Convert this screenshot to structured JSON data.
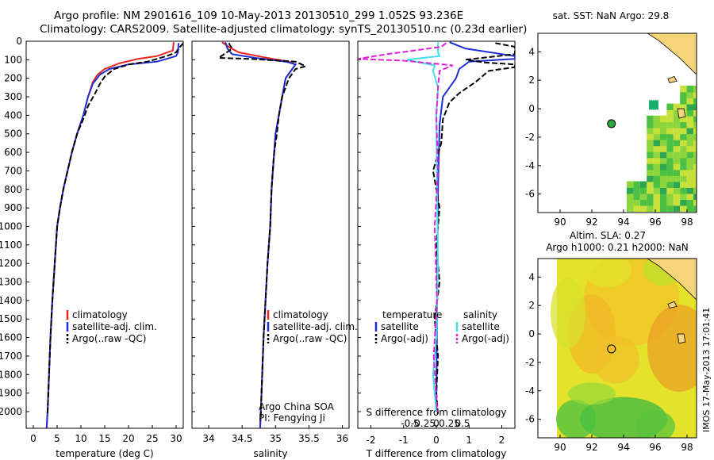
{
  "title_line1": "Argo profile: NM 2901616_109 10-May-2013 20130510_299 1.052S 93.236E",
  "title_line2": "Climatology: CARS2009. Satellite-adjusted climatology: synTS_20130510.nc (0.23d earlier)",
  "sidebar_text": "IMOS 17-May-2013 17:01:41",
  "colors": {
    "clim": "#e8261f",
    "sat": "#1f2ed6",
    "argo": "#000000",
    "sat_s": "#3fe0e8",
    "argo_s": "#e020d8"
  },
  "chart_data": [
    {
      "type": "line",
      "id": "temperature",
      "xlabel": "temperature (deg C)",
      "ylabel": "",
      "xlim": [
        -1.5,
        31.5
      ],
      "ylim": [
        2090,
        0
      ],
      "xticks": [
        0,
        5,
        10,
        15,
        20,
        25,
        30
      ],
      "yticks": [
        0,
        100,
        200,
        300,
        400,
        500,
        600,
        700,
        800,
        900,
        1000,
        1100,
        1200,
        1300,
        1400,
        1500,
        1600,
        1700,
        1800,
        1900,
        2000
      ],
      "legend": [
        "climatology",
        "satellite-adj. clim.",
        "Argo(..raw -QC)"
      ],
      "series": [
        {
          "name": "climatology",
          "points": [
            [
              29.5,
              5
            ],
            [
              29.3,
              50
            ],
            [
              26,
              80
            ],
            [
              22,
              95
            ],
            [
              18,
              120
            ],
            [
              15,
              150
            ],
            [
              13.5,
              180
            ],
            [
              12.5,
              220
            ],
            [
              11.5,
              300
            ],
            [
              10.5,
              400
            ],
            [
              9.2,
              500
            ],
            [
              8.1,
              600
            ],
            [
              7.2,
              700
            ],
            [
              6.3,
              800
            ],
            [
              5.6,
              900
            ],
            [
              5,
              1000
            ],
            [
              4.5,
              1200
            ],
            [
              4,
              1400
            ],
            [
              3.6,
              1600
            ],
            [
              3.3,
              1800
            ],
            [
              3,
              2000
            ],
            [
              2.8,
              2090
            ]
          ]
        },
        {
          "name": "satellite-adj. clim.",
          "points": [
            [
              30.5,
              10
            ],
            [
              30.4,
              60
            ],
            [
              30,
              80
            ],
            [
              26,
              110
            ],
            [
              20,
              125
            ],
            [
              16,
              150
            ],
            [
              14,
              180
            ],
            [
              12.5,
              230
            ],
            [
              11.5,
              300
            ],
            [
              10.5,
              400
            ],
            [
              9.2,
              500
            ],
            [
              8.1,
              600
            ],
            [
              7.2,
              700
            ],
            [
              6.3,
              800
            ],
            [
              5.6,
              900
            ],
            [
              5,
              1000
            ],
            [
              4.5,
              1200
            ],
            [
              4,
              1400
            ],
            [
              3.6,
              1600
            ],
            [
              3.3,
              1800
            ],
            [
              3,
              2000
            ],
            [
              2.8,
              2090
            ]
          ]
        },
        {
          "name": "Argo(..raw -QC)",
          "points": [
            [
              31.5,
              10
            ],
            [
              30.5,
              40
            ],
            [
              30,
              60
            ],
            [
              28,
              80
            ],
            [
              24,
              110
            ],
            [
              20,
              125
            ],
            [
              17,
              150
            ],
            [
              15,
              190
            ],
            [
              14,
              230
            ],
            [
              13,
              280
            ],
            [
              11.5,
              350
            ],
            [
              10.5,
              420
            ],
            [
              9.2,
              500
            ],
            [
              8.1,
              600
            ],
            [
              7.2,
              700
            ],
            [
              6.3,
              800
            ],
            [
              5.6,
              900
            ],
            [
              5,
              1000
            ],
            [
              4.5,
              1200
            ],
            [
              4,
              1400
            ],
            [
              3.6,
              1600
            ],
            [
              3.3,
              1800
            ],
            [
              3,
              2000
            ],
            [
              2.9,
              2020
            ]
          ]
        }
      ]
    },
    {
      "type": "line",
      "id": "salinity",
      "xlabel": "salinity",
      "xlim": [
        33.75,
        36.1
      ],
      "ylim": [
        2090,
        0
      ],
      "xticks": [
        34,
        34.5,
        35,
        35.5,
        36
      ],
      "legend": [
        "climatology",
        "satellite-adj. clim.",
        "Argo(..raw -QC)"
      ],
      "annotation": [
        "Argo China SOA",
        "PI: Fengying Ji"
      ],
      "series": [
        {
          "name": "climatology",
          "points": [
            [
              34.2,
              5
            ],
            [
              34.3,
              30
            ],
            [
              34.45,
              60
            ],
            [
              34.8,
              85
            ],
            [
              35.2,
              110
            ],
            [
              35.3,
              125
            ],
            [
              35.25,
              150
            ],
            [
              35.15,
              200
            ],
            [
              35.1,
              300
            ],
            [
              35.05,
              400
            ],
            [
              35.0,
              500
            ],
            [
              34.98,
              600
            ],
            [
              34.96,
              700
            ],
            [
              34.94,
              800
            ],
            [
              34.92,
              1000
            ],
            [
              34.88,
              1200
            ],
            [
              34.85,
              1400
            ],
            [
              34.82,
              1600
            ],
            [
              34.8,
              1800
            ],
            [
              34.78,
              2000
            ],
            [
              34.77,
              2090
            ]
          ]
        },
        {
          "name": "satellite-adj. clim.",
          "points": [
            [
              34.25,
              5
            ],
            [
              34.28,
              40
            ],
            [
              34.35,
              70
            ],
            [
              34.7,
              90
            ],
            [
              35.15,
              110
            ],
            [
              35.3,
              125
            ],
            [
              35.25,
              150
            ],
            [
              35.15,
              200
            ],
            [
              35.1,
              300
            ],
            [
              35.05,
              400
            ],
            [
              35.0,
              500
            ],
            [
              34.98,
              600
            ],
            [
              34.96,
              700
            ],
            [
              34.94,
              800
            ],
            [
              34.92,
              1000
            ],
            [
              34.88,
              1200
            ],
            [
              34.85,
              1400
            ],
            [
              34.82,
              1600
            ],
            [
              34.8,
              1800
            ],
            [
              34.78,
              2000
            ],
            [
              34.77,
              2090
            ]
          ]
        },
        {
          "name": "Argo(..raw -QC)",
          "points": [
            [
              34.3,
              10
            ],
            [
              34.35,
              40
            ],
            [
              34.15,
              90
            ],
            [
              34.6,
              95
            ],
            [
              35.3,
              110
            ],
            [
              35.45,
              135
            ],
            [
              35.3,
              150
            ],
            [
              35.2,
              200
            ],
            [
              35.1,
              300
            ],
            [
              35.05,
              400
            ],
            [
              35.02,
              500
            ],
            [
              34.98,
              600
            ],
            [
              34.96,
              700
            ],
            [
              34.94,
              800
            ],
            [
              34.92,
              1000
            ],
            [
              34.88,
              1200
            ],
            [
              34.85,
              1400
            ],
            [
              34.82,
              1600
            ],
            [
              34.8,
              1800
            ],
            [
              34.78,
              2000
            ],
            [
              34.78,
              2030
            ]
          ]
        }
      ]
    },
    {
      "type": "line",
      "id": "difference",
      "xlabel": "T difference from climatology",
      "xlabel_top": "S difference from climatology",
      "xlim": [
        -2.4,
        2.4
      ],
      "ylim": [
        2090,
        0
      ],
      "xticks": [
        -2,
        -1,
        0,
        1,
        2
      ],
      "s_ticks": [
        -0.5,
        -0.25,
        0,
        0.25,
        0.5
      ],
      "legend_left_title": "temperature",
      "legend_right_title": "salinity",
      "legend_left": [
        "satellite",
        "Argo(-adj)"
      ],
      "legend_right": [
        "satellite",
        "Argo(-adj)"
      ],
      "series": [
        {
          "name": "T satellite",
          "points": [
            [
              0.4,
              5
            ],
            [
              0.9,
              40
            ],
            [
              2.4,
              80
            ],
            [
              2.4,
              95
            ],
            [
              1,
              110
            ],
            [
              0.7,
              150
            ],
            [
              0.6,
              200
            ],
            [
              0.4,
              250
            ],
            [
              0.2,
              300
            ],
            [
              0.1,
              450
            ],
            [
              0.05,
              800
            ],
            [
              0.02,
              1500
            ],
            [
              0,
              2000
            ]
          ]
        },
        {
          "name": "T Argo(-adj)",
          "points": [
            [
              1.8,
              10
            ],
            [
              2.4,
              30
            ],
            [
              2.4,
              70
            ],
            [
              0.9,
              100
            ],
            [
              1.5,
              115
            ],
            [
              2.4,
              125
            ],
            [
              2.4,
              140
            ],
            [
              1.6,
              160
            ],
            [
              1.2,
              220
            ],
            [
              0.7,
              280
            ],
            [
              0.4,
              330
            ],
            [
              0.2,
              420
            ],
            [
              0.15,
              550
            ],
            [
              -0.1,
              700
            ],
            [
              0.1,
              900
            ],
            [
              0,
              1100
            ],
            [
              0.1,
              1300
            ],
            [
              -0.05,
              1500
            ],
            [
              0.05,
              1700
            ],
            [
              0,
              1900
            ],
            [
              0.05,
              2020
            ]
          ]
        },
        {
          "name": "S satellite",
          "points": [
            [
              0.05,
              5
            ],
            [
              0.05,
              60
            ],
            [
              0.1,
              80
            ],
            [
              -0.9,
              100
            ],
            [
              -0.5,
              115
            ],
            [
              -0.05,
              130
            ],
            [
              -0.1,
              160
            ],
            [
              0.05,
              250
            ],
            [
              0,
              400
            ],
            [
              0.02,
              800
            ],
            [
              0.05,
              1200
            ],
            [
              0,
              1600
            ],
            [
              -0.1,
              1800
            ],
            [
              0,
              2000
            ]
          ]
        },
        {
          "name": "S Argo(-adj)",
          "points": [
            [
              0.3,
              10
            ],
            [
              0.15,
              30
            ],
            [
              -1.5,
              70
            ],
            [
              -2.4,
              95
            ],
            [
              -1.0,
              105
            ],
            [
              0.5,
              130
            ],
            [
              0.1,
              160
            ],
            [
              0.05,
              250
            ],
            [
              0,
              400
            ],
            [
              0.05,
              700
            ],
            [
              -0.05,
              1000
            ],
            [
              0.02,
              1400
            ],
            [
              -0.08,
              1700
            ],
            [
              0.03,
              2000
            ]
          ]
        }
      ]
    },
    {
      "type": "heatmap",
      "id": "sst_map",
      "title": "sat. SST: NaN Argo: 29.8",
      "xlim": [
        88.6,
        98.6
      ],
      "ylim": [
        -7.3,
        5.3
      ],
      "xticks": [
        90,
        92,
        94,
        96,
        98
      ],
      "yticks": [
        -6,
        -4,
        -2,
        0,
        2,
        4
      ],
      "argo_position": [
        93.236,
        -1.052
      ]
    },
    {
      "type": "heatmap",
      "id": "sla_map",
      "title": "Altim. SLA: 0.27",
      "subtitle": "Argo h1000: 0.21 h2000: NaN",
      "xlim": [
        88.6,
        98.6
      ],
      "ylim": [
        -7.3,
        5.3
      ],
      "xticks": [
        90,
        92,
        94,
        96,
        98
      ],
      "yticks": [
        -6,
        -4,
        -2,
        0,
        2,
        4
      ],
      "argo_position": [
        93.236,
        -1.052
      ]
    }
  ]
}
